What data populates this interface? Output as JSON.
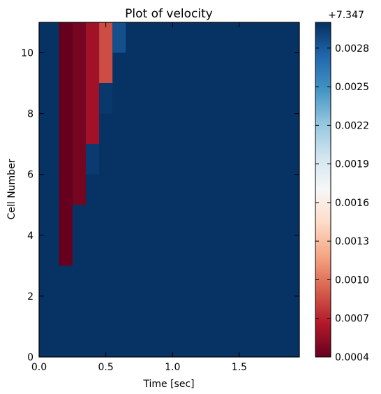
{
  "chart_data": {
    "type": "heatmap",
    "title": "Plot of velocity",
    "xlabel": "Time [sec]",
    "ylabel": "Cell Number",
    "xlim": [
      0,
      1.95
    ],
    "ylim": [
      0,
      11
    ],
    "xticks": [
      0.0,
      0.5,
      1.0,
      1.5
    ],
    "xtick_labels": [
      "0.0",
      "0.5",
      "1.0",
      "1.5"
    ],
    "yticks": [
      0,
      2,
      4,
      6,
      8,
      10
    ],
    "ytick_labels": [
      "0",
      "2",
      "4",
      "6",
      "8",
      "10"
    ],
    "colormap": "RdBu",
    "colorbar": {
      "offset_label": "+7.347",
      "min": 0.0004,
      "max": 0.003,
      "ticks": [
        0.0004,
        0.0007,
        0.001,
        0.0013,
        0.0016,
        0.0019,
        0.0022,
        0.0025,
        0.0028
      ],
      "tick_labels": [
        "0.0004",
        "0.0007",
        "0.0010",
        "0.0013",
        "0.0016",
        "0.0019",
        "0.0022",
        "0.0025",
        "0.0028"
      ]
    },
    "time_step": 0.1,
    "background_value": 0.00299,
    "anomalies": [
      {
        "t0": 0.15,
        "t1": 0.25,
        "c0": 3,
        "c1": 11,
        "value": 0.0004
      },
      {
        "t0": 0.25,
        "t1": 0.35,
        "c0": 5,
        "c1": 11,
        "value": 0.00045
      },
      {
        "t0": 0.35,
        "t1": 0.45,
        "c0": 7,
        "c1": 11,
        "value": 0.0006
      },
      {
        "t0": 0.35,
        "t1": 0.45,
        "c0": 6,
        "c1": 7,
        "value": 0.00295
      },
      {
        "t0": 0.45,
        "t1": 0.55,
        "c0": 9,
        "c1": 11,
        "value": 0.00085
      },
      {
        "t0": 0.45,
        "t1": 0.55,
        "c0": 8,
        "c1": 9,
        "value": 0.00296
      },
      {
        "t0": 0.55,
        "t1": 0.65,
        "c0": 10,
        "c1": 11,
        "value": 0.00285
      }
    ]
  }
}
